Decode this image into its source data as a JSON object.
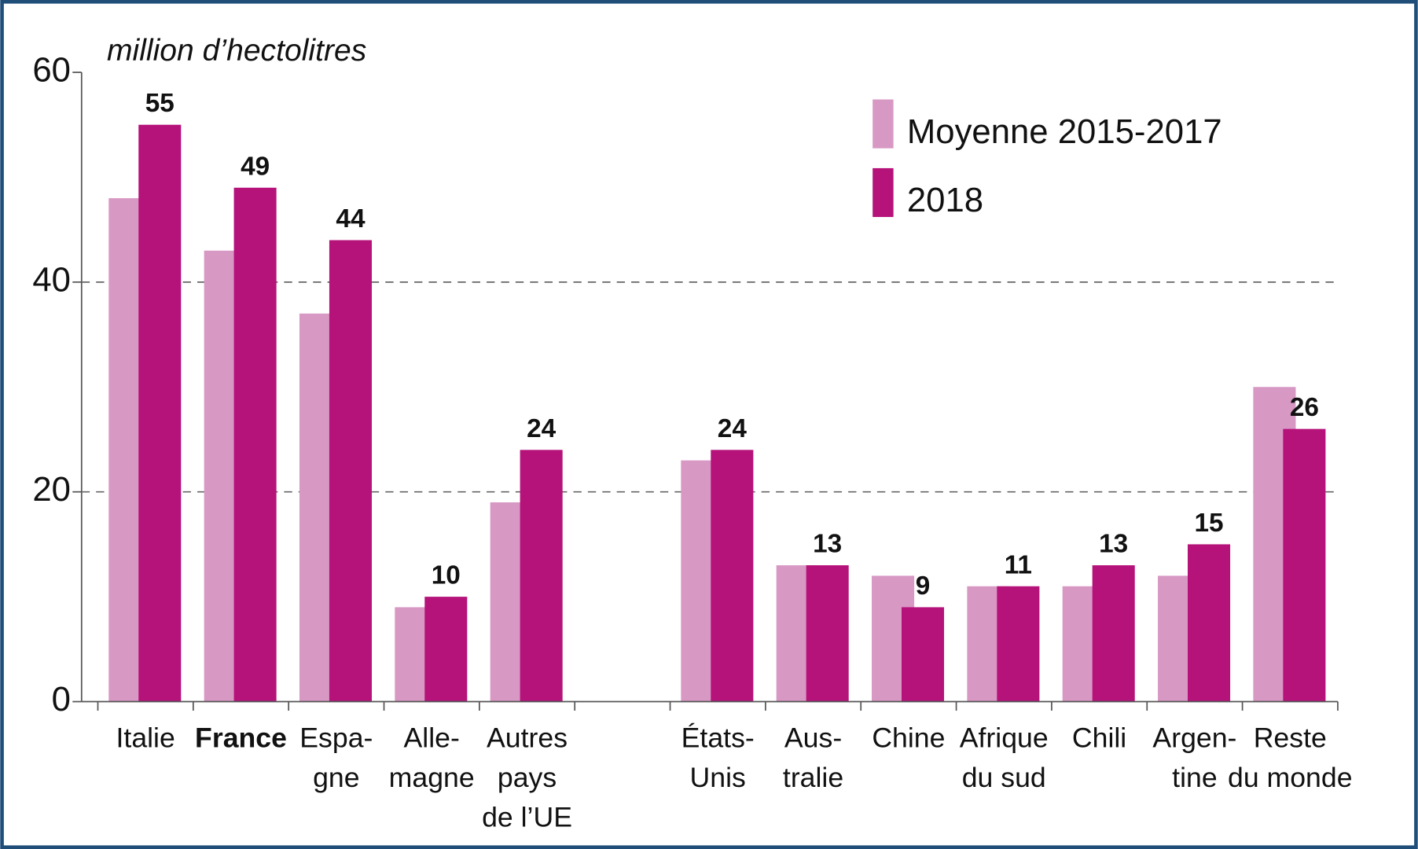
{
  "chart_data": {
    "type": "bar",
    "y_axis_label": "million d’hectolitres",
    "categories": [
      [
        "Italie"
      ],
      [
        "France"
      ],
      [
        "Espa-",
        "gne"
      ],
      [
        "Alle-",
        "magne"
      ],
      [
        "Autres",
        "pays",
        "de l’UE"
      ],
      null,
      [
        "États-",
        "Unis"
      ],
      [
        "Aus-",
        "tralie"
      ],
      [
        "Chine"
      ],
      [
        "Afrique",
        "du sud"
      ],
      [
        "Chili"
      ],
      [
        "Argen-",
        "tine"
      ],
      [
        "Reste",
        "du monde"
      ]
    ],
    "series": [
      {
        "name": "Moyenne 2015-2017",
        "color": "#d898c4",
        "values": [
          48,
          43,
          37,
          9,
          19,
          null,
          23,
          13,
          12,
          11,
          11,
          12,
          30
        ]
      },
      {
        "name": "2018",
        "color": "#b5127a",
        "values": [
          55,
          49,
          44,
          10,
          24,
          null,
          24,
          13,
          9,
          11,
          13,
          15,
          26
        ]
      }
    ],
    "labeled_series": [
      1
    ],
    "ylim": [
      0,
      60
    ],
    "yticks": [
      0,
      20,
      40,
      60
    ],
    "grid": true,
    "legend": "upper right"
  }
}
